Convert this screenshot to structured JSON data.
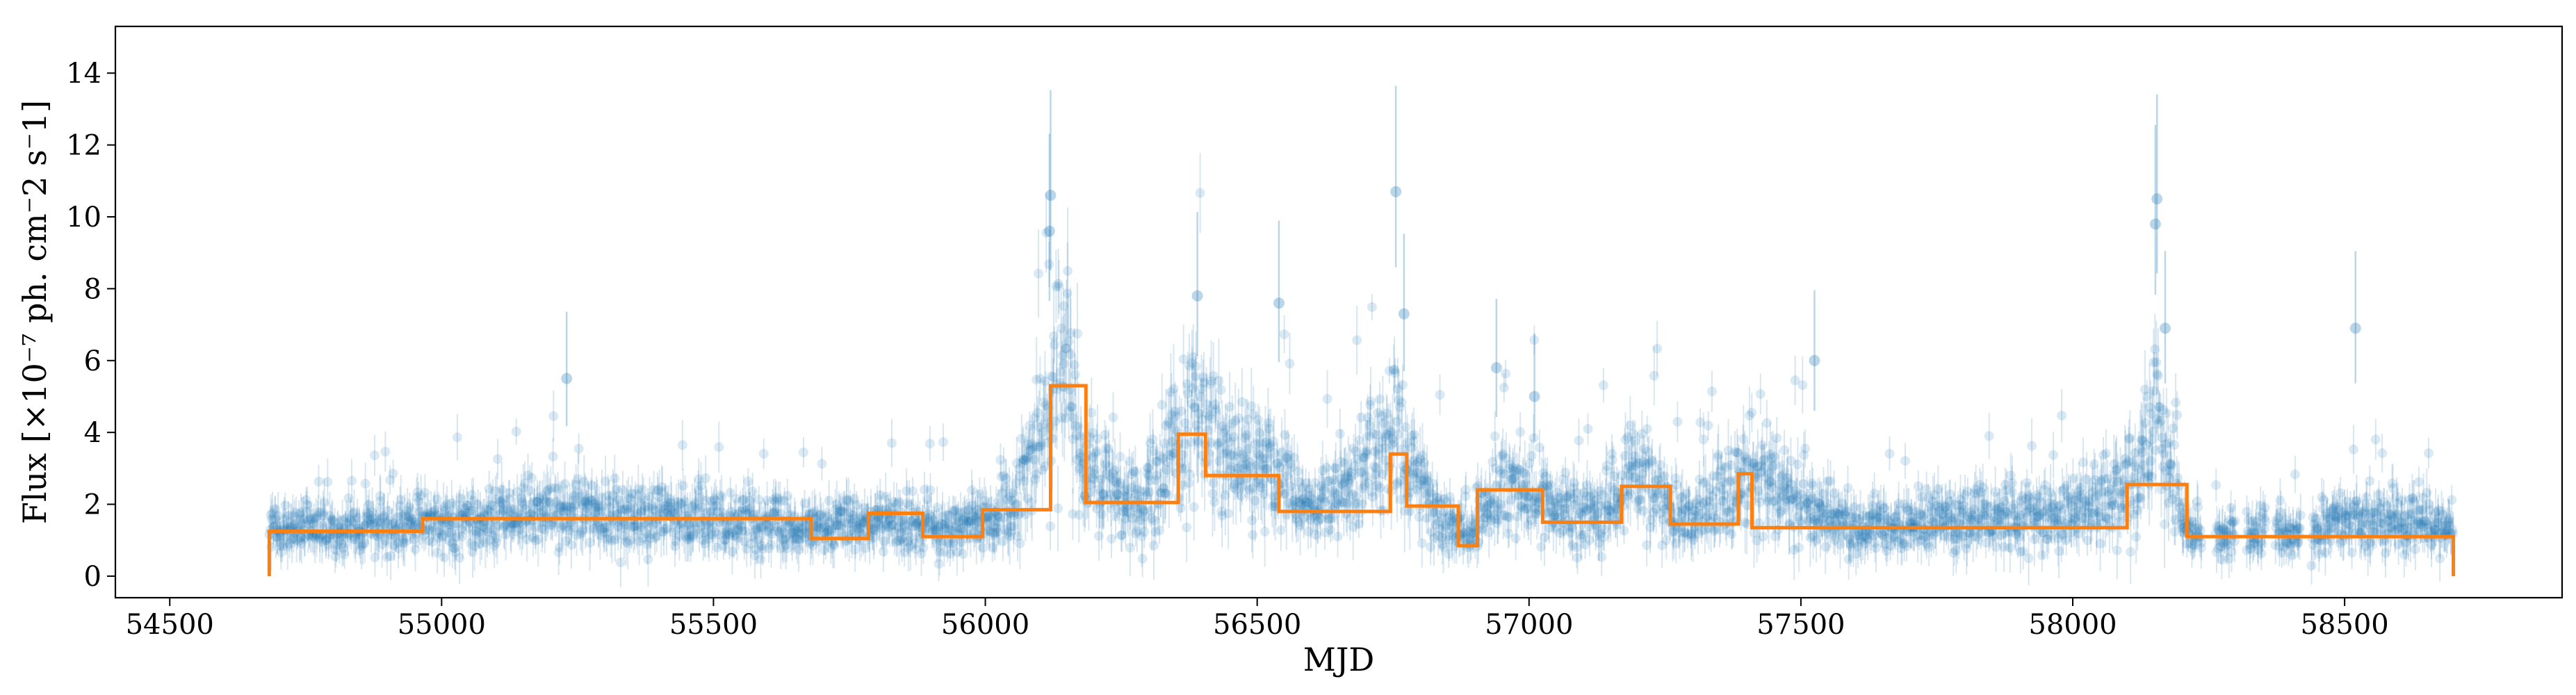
{
  "chart_data": {
    "type": "scatter",
    "xlabel": "MJD",
    "ylabel": "Flux [×10⁻⁷ ph. cm⁻2 s⁻1]",
    "xlim": [
      54400,
      58900
    ],
    "ylim": [
      -0.6,
      15.3
    ],
    "xticks": [
      54500,
      55000,
      55500,
      56000,
      56500,
      57000,
      57500,
      58000,
      58500
    ],
    "yticks": [
      0,
      2,
      4,
      6,
      8,
      10,
      12,
      14
    ],
    "grid": false,
    "colors": {
      "points": "#1f77b4",
      "blocks": "#ff7f0e"
    },
    "series": [
      {
        "kind": "points_with_error_bars",
        "color": "#1f77b4",
        "x_range": [
          54683,
          58700
        ],
        "approx_points_count": 3500,
        "envelope": [
          {
            "x": 54700,
            "y": 1.3
          },
          {
            "x": 54960,
            "y": 1.4
          },
          {
            "x": 55200,
            "y": 1.8
          },
          {
            "x": 55500,
            "y": 1.6
          },
          {
            "x": 55680,
            "y": 1.3
          },
          {
            "x": 55800,
            "y": 1.5
          },
          {
            "x": 55950,
            "y": 1.3
          },
          {
            "x": 56050,
            "y": 1.9
          },
          {
            "x": 56120,
            "y": 4.5
          },
          {
            "x": 56150,
            "y": 7.5
          },
          {
            "x": 56180,
            "y": 3.0
          },
          {
            "x": 56280,
            "y": 2.0
          },
          {
            "x": 56380,
            "y": 4.5
          },
          {
            "x": 56450,
            "y": 3.0
          },
          {
            "x": 56520,
            "y": 3.2
          },
          {
            "x": 56600,
            "y": 1.8
          },
          {
            "x": 56750,
            "y": 3.8
          },
          {
            "x": 56820,
            "y": 2.0
          },
          {
            "x": 56890,
            "y": 1.0
          },
          {
            "x": 56950,
            "y": 2.6
          },
          {
            "x": 57100,
            "y": 1.6
          },
          {
            "x": 57200,
            "y": 2.6
          },
          {
            "x": 57300,
            "y": 1.5
          },
          {
            "x": 57400,
            "y": 2.9
          },
          {
            "x": 57600,
            "y": 1.3
          },
          {
            "x": 57800,
            "y": 1.6
          },
          {
            "x": 58000,
            "y": 1.8
          },
          {
            "x": 58100,
            "y": 2.5
          },
          {
            "x": 58150,
            "y": 4.5
          },
          {
            "x": 58210,
            "y": 1.2
          },
          {
            "x": 58400,
            "y": 1.2
          },
          {
            "x": 58550,
            "y": 1.6
          },
          {
            "x": 58700,
            "y": 1.3
          }
        ],
        "outliers": [
          {
            "x": 56120,
            "y": 10.6
          },
          {
            "x": 56118,
            "y": 9.6
          },
          {
            "x": 56755,
            "y": 10.7
          },
          {
            "x": 56770,
            "y": 7.3
          },
          {
            "x": 56540,
            "y": 7.6
          },
          {
            "x": 56390,
            "y": 7.8
          },
          {
            "x": 58155,
            "y": 10.5
          },
          {
            "x": 58152,
            "y": 9.8
          },
          {
            "x": 58520,
            "y": 6.9
          },
          {
            "x": 57525,
            "y": 6.0
          },
          {
            "x": 55230,
            "y": 5.5
          },
          {
            "x": 58170,
            "y": 6.9
          },
          {
            "x": 56940,
            "y": 5.8
          },
          {
            "x": 57010,
            "y": 5.0
          }
        ]
      },
      {
        "kind": "bayesian_blocks",
        "color": "#ff7f0e",
        "steps": [
          {
            "x0": 54683,
            "x1": 54965,
            "y": 1.25
          },
          {
            "x0": 54965,
            "x1": 55680,
            "y": 1.6
          },
          {
            "x0": 55680,
            "x1": 55785,
            "y": 1.05
          },
          {
            "x0": 55785,
            "x1": 55885,
            "y": 1.75
          },
          {
            "x0": 55885,
            "x1": 55995,
            "y": 1.1
          },
          {
            "x0": 55995,
            "x1": 56120,
            "y": 1.85
          },
          {
            "x0": 56120,
            "x1": 56185,
            "y": 5.3
          },
          {
            "x0": 56185,
            "x1": 56355,
            "y": 2.05
          },
          {
            "x0": 56355,
            "x1": 56405,
            "y": 3.95
          },
          {
            "x0": 56405,
            "x1": 56540,
            "y": 2.8
          },
          {
            "x0": 56540,
            "x1": 56745,
            "y": 1.8
          },
          {
            "x0": 56745,
            "x1": 56775,
            "y": 3.4
          },
          {
            "x0": 56775,
            "x1": 56870,
            "y": 1.95
          },
          {
            "x0": 56870,
            "x1": 56905,
            "y": 0.85
          },
          {
            "x0": 56905,
            "x1": 57025,
            "y": 2.4
          },
          {
            "x0": 57025,
            "x1": 57170,
            "y": 1.5
          },
          {
            "x0": 57170,
            "x1": 57260,
            "y": 2.5
          },
          {
            "x0": 57260,
            "x1": 57385,
            "y": 1.45
          },
          {
            "x0": 57385,
            "x1": 57410,
            "y": 2.85
          },
          {
            "x0": 57410,
            "x1": 58100,
            "y": 1.35
          },
          {
            "x0": 58100,
            "x1": 58210,
            "y": 2.55
          },
          {
            "x0": 58210,
            "x1": 58700,
            "y": 1.1
          }
        ]
      }
    ]
  }
}
